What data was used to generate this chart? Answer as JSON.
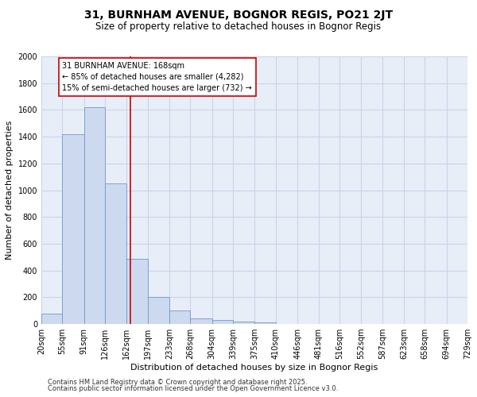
{
  "title1": "31, BURNHAM AVENUE, BOGNOR REGIS, PO21 2JT",
  "title2": "Size of property relative to detached houses in Bognor Regis",
  "xlabel": "Distribution of detached houses by size in Bognor Regis",
  "ylabel": "Number of detached properties",
  "bins": [
    20,
    55,
    91,
    126,
    162,
    197,
    233,
    268,
    304,
    339,
    375,
    410,
    446,
    481,
    516,
    552,
    587,
    623,
    658,
    694,
    729
  ],
  "bar_heights": [
    80,
    1420,
    1620,
    1050,
    490,
    200,
    100,
    40,
    30,
    20,
    15,
    0,
    0,
    0,
    0,
    0,
    0,
    0,
    0,
    0
  ],
  "bar_color": "#cdd9ee",
  "bar_edge_color": "#7099cc",
  "grid_color": "#c8d4e8",
  "bg_color": "#e8eef8",
  "vline_x": 168,
  "vline_color": "#cc0000",
  "annotation_line1": "31 BURNHAM AVENUE: 168sqm",
  "annotation_line2": "← 85% of detached houses are smaller (4,282)",
  "annotation_line3": "15% of semi-detached houses are larger (732) →",
  "annotation_box_color": "#ffffff",
  "annotation_edge_color": "#cc0000",
  "ylim": [
    0,
    2000
  ],
  "yticks": [
    0,
    200,
    400,
    600,
    800,
    1000,
    1200,
    1400,
    1600,
    1800,
    2000
  ],
  "footer1": "Contains HM Land Registry data © Crown copyright and database right 2025.",
  "footer2": "Contains public sector information licensed under the Open Government Licence v3.0.",
  "title1_fontsize": 10,
  "title2_fontsize": 8.5,
  "axis_label_fontsize": 8,
  "tick_fontsize": 7,
  "annotation_fontsize": 7,
  "footer_fontsize": 6
}
